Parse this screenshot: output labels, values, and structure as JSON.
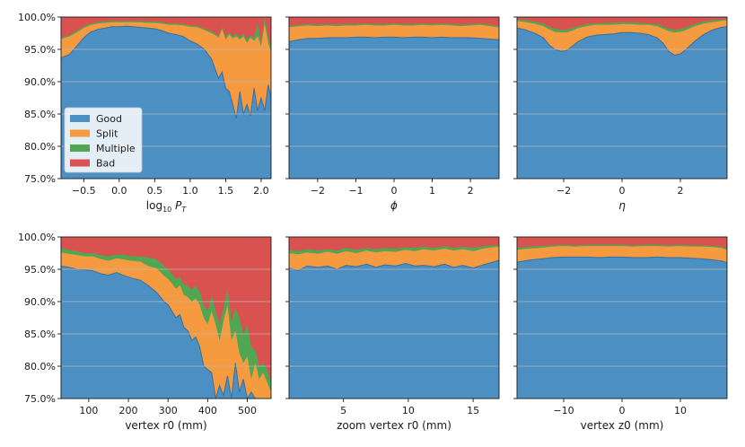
{
  "chart_data": {
    "type": "area",
    "title": "",
    "colors": {
      "good": "#4b8fc3",
      "split": "#f69a3f",
      "multiple": "#51a653",
      "bad": "#d9524f"
    },
    "legend": {
      "placement": "left-middle of first panel",
      "entries": [
        "Good",
        "Split",
        "Multiple",
        "Bad"
      ]
    },
    "ylim": [
      75,
      100
    ],
    "yticks": [
      "75.0%",
      "80.0%",
      "85.0%",
      "90.0%",
      "95.0%",
      "100.0%"
    ],
    "grid": "horizontal",
    "panels": [
      {
        "xlabel_html": "log<tspan font-size='8' dy='3'>10</tspan><tspan dy='-3'> </tspan><tspan font-style='italic'>P</tspan><tspan font-size='8' dy='3' font-style='italic'>T</tspan>",
        "xlabel": "log10 P_T",
        "xlim": [
          -0.82,
          2.14
        ],
        "xticks": [
          -0.5,
          0.0,
          0.5,
          1.0,
          1.5,
          2.0
        ],
        "xtick_labels": [
          "−0.5",
          "0.0",
          "0.5",
          "1.0",
          "1.5",
          "2.0"
        ],
        "show_legend": true,
        "x": [
          -0.82,
          -0.7,
          -0.6,
          -0.5,
          -0.4,
          -0.3,
          -0.2,
          -0.1,
          0.0,
          0.1,
          0.2,
          0.3,
          0.4,
          0.5,
          0.6,
          0.7,
          0.8,
          0.9,
          1.0,
          1.1,
          1.2,
          1.3,
          1.35,
          1.4,
          1.45,
          1.5,
          1.55,
          1.6,
          1.65,
          1.7,
          1.75,
          1.8,
          1.85,
          1.9,
          1.95,
          2.0,
          2.05,
          2.1,
          2.14
        ],
        "good": [
          93.7,
          94.2,
          95.5,
          96.8,
          97.7,
          98.1,
          98.3,
          98.5,
          98.5,
          98.6,
          98.5,
          98.4,
          98.3,
          98.2,
          97.9,
          97.5,
          97.3,
          97.0,
          96.3,
          95.8,
          95.0,
          93.5,
          92.0,
          90.5,
          91.5,
          89.0,
          88.5,
          86.5,
          84.3,
          88.5,
          85.0,
          86.5,
          84.7,
          89.0,
          85.5,
          87.5,
          85.5,
          89.5,
          87.5
        ],
        "multiple": [
          96.8,
          97.2,
          97.9,
          98.5,
          99.0,
          99.2,
          99.3,
          99.4,
          99.4,
          99.4,
          99.4,
          99.4,
          99.3,
          99.3,
          99.2,
          99.0,
          99.0,
          98.9,
          98.7,
          98.6,
          98.2,
          97.8,
          97.5,
          97.0,
          98.5,
          96.8,
          97.7,
          97.0,
          97.5,
          96.8,
          97.5,
          96.5,
          97.2,
          96.8,
          99.0,
          96.0,
          100.0,
          97.0,
          95.0
        ],
        "split": [
          96.6,
          97.0,
          97.6,
          98.3,
          98.8,
          99.0,
          99.1,
          99.2,
          99.2,
          99.2,
          99.2,
          99.2,
          99.1,
          99.1,
          99.0,
          98.8,
          98.8,
          98.7,
          98.5,
          98.4,
          98.0,
          97.5,
          97.2,
          96.8,
          98.2,
          96.5,
          97.3,
          96.7,
          97.0,
          96.5,
          97.0,
          96.0,
          96.8,
          96.3,
          97.0,
          95.5,
          99.0,
          96.0,
          94.5
        ]
      },
      {
        "xlabel_html": "<tspan font-style='italic'>ϕ</tspan>",
        "xlabel": "ϕ",
        "xlim": [
          -2.75,
          2.75
        ],
        "xticks": [
          -2,
          -1,
          0,
          1,
          2
        ],
        "xtick_labels": [
          "−2",
          "−1",
          "0",
          "1",
          "2"
        ],
        "show_legend": false,
        "x": [
          -2.75,
          -2.5,
          -2.25,
          -2.0,
          -1.75,
          -1.5,
          -1.25,
          -1.0,
          -0.75,
          -0.5,
          -0.25,
          0.0,
          0.25,
          0.5,
          0.75,
          1.0,
          1.25,
          1.5,
          1.75,
          2.0,
          2.25,
          2.5,
          2.75
        ],
        "good": [
          96.2,
          96.5,
          96.7,
          96.7,
          96.8,
          96.8,
          96.8,
          96.9,
          96.9,
          96.8,
          96.9,
          96.9,
          96.8,
          96.9,
          96.9,
          96.8,
          96.9,
          96.8,
          96.8,
          96.8,
          96.7,
          96.6,
          96.5
        ],
        "split": [
          98.4,
          98.6,
          98.7,
          98.6,
          98.7,
          98.6,
          98.7,
          98.7,
          98.8,
          98.7,
          98.7,
          98.8,
          98.7,
          98.7,
          98.8,
          98.7,
          98.8,
          98.7,
          98.6,
          98.7,
          98.8,
          98.6,
          98.4
        ],
        "multiple": [
          98.6,
          98.8,
          98.9,
          98.8,
          98.9,
          98.8,
          98.9,
          98.9,
          99.0,
          98.9,
          98.9,
          99.0,
          98.9,
          98.9,
          99.0,
          98.9,
          99.0,
          98.9,
          98.8,
          98.9,
          99.0,
          98.8,
          98.6
        ]
      },
      {
        "xlabel_html": "<tspan font-style='italic'>η</tspan>",
        "xlabel": "η",
        "xlim": [
          -3.6,
          3.6
        ],
        "xticks": [
          -2,
          0,
          2
        ],
        "xtick_labels": [
          "−2",
          "0",
          "2"
        ],
        "show_legend": false,
        "x": [
          -3.6,
          -3.3,
          -3.0,
          -2.7,
          -2.5,
          -2.3,
          -2.1,
          -1.9,
          -1.7,
          -1.5,
          -1.2,
          -0.9,
          -0.6,
          -0.3,
          0.0,
          0.3,
          0.6,
          0.9,
          1.2,
          1.4,
          1.6,
          1.8,
          2.0,
          2.2,
          2.5,
          2.8,
          3.1,
          3.4,
          3.6
        ],
        "good": [
          98.3,
          98.0,
          97.5,
          96.8,
          95.7,
          95.0,
          94.7,
          94.8,
          95.5,
          96.2,
          96.9,
          97.2,
          97.3,
          97.4,
          97.6,
          97.6,
          97.5,
          97.3,
          96.8,
          96.0,
          94.7,
          94.1,
          94.3,
          95.0,
          96.3,
          97.3,
          98.0,
          98.4,
          98.5
        ],
        "split": [
          99.4,
          99.2,
          99.0,
          98.6,
          98.1,
          97.7,
          97.6,
          97.6,
          97.9,
          98.3,
          98.6,
          98.8,
          98.8,
          98.8,
          98.9,
          98.9,
          98.8,
          98.8,
          98.6,
          98.2,
          97.8,
          97.6,
          97.7,
          98.0,
          98.6,
          99.0,
          99.2,
          99.4,
          99.5
        ],
        "multiple": [
          99.6,
          99.5,
          99.3,
          99.0,
          98.5,
          98.2,
          98.0,
          98.0,
          98.3,
          98.6,
          98.9,
          99.0,
          99.1,
          99.1,
          99.2,
          99.2,
          99.1,
          99.0,
          98.9,
          98.6,
          98.2,
          98.0,
          98.1,
          98.4,
          98.9,
          99.3,
          99.5,
          99.6,
          99.7
        ]
      },
      {
        "xlabel_html": "vertex r0 (mm)",
        "xlabel": "vertex r0 (mm)",
        "xlim": [
          30,
          560
        ],
        "xticks": [
          100,
          200,
          300,
          400,
          500
        ],
        "xtick_labels": [
          "100",
          "200",
          "300",
          "400",
          "500"
        ],
        "show_legend": false,
        "x": [
          30,
          50,
          70,
          90,
          110,
          130,
          150,
          170,
          190,
          210,
          230,
          250,
          270,
          290,
          300,
          310,
          320,
          330,
          340,
          350,
          360,
          370,
          380,
          390,
          400,
          410,
          420,
          430,
          440,
          450,
          460,
          470,
          480,
          490,
          500,
          510,
          520,
          530,
          540,
          550,
          560
        ],
        "good": [
          95.5,
          95.3,
          95.0,
          94.9,
          94.8,
          94.3,
          94.1,
          94.5,
          94.0,
          93.6,
          93.3,
          92.5,
          91.5,
          90.0,
          89.5,
          88.5,
          87.5,
          88.0,
          86.0,
          85.5,
          84.0,
          84.5,
          83.0,
          80.0,
          79.5,
          79.0,
          75.0,
          77.0,
          75.5,
          78.5,
          75.0,
          80.5,
          76.0,
          78.0,
          75.0,
          76.0,
          75.0,
          75.0,
          75.0,
          75.0,
          75.0
        ],
        "split": [
          97.6,
          97.4,
          97.2,
          97.0,
          97.0,
          96.6,
          96.3,
          96.7,
          96.5,
          96.3,
          96.2,
          95.5,
          95.2,
          94.0,
          93.5,
          92.8,
          92.0,
          92.5,
          91.0,
          90.7,
          90.0,
          90.5,
          89.5,
          87.5,
          86.5,
          88.5,
          86.5,
          84.0,
          87.0,
          89.5,
          84.0,
          85.5,
          82.0,
          80.5,
          81.5,
          78.0,
          80.5,
          78.0,
          79.0,
          77.5,
          76.0
        ],
        "multiple": [
          98.3,
          98.0,
          97.8,
          97.5,
          97.5,
          97.2,
          97.0,
          97.3,
          97.2,
          97.0,
          97.0,
          96.8,
          96.6,
          95.5,
          95.0,
          94.3,
          93.5,
          93.8,
          92.6,
          92.5,
          91.8,
          92.5,
          91.5,
          89.5,
          88.5,
          91.0,
          88.5,
          86.5,
          89.0,
          92.0,
          87.0,
          89.0,
          87.5,
          85.0,
          86.5,
          83.0,
          82.5,
          80.0,
          80.5,
          79.5,
          77.5
        ]
      },
      {
        "xlabel_html": "zoom vertex r0 (mm)",
        "xlabel": "zoom vertex r0 (mm)",
        "xlim": [
          0.8,
          17
        ],
        "xticks": [
          5,
          10,
          15
        ],
        "xtick_labels": [
          "5",
          "10",
          "15"
        ],
        "show_legend": false,
        "x": [
          0.8,
          1.5,
          2.2,
          3.0,
          3.8,
          4.5,
          5.2,
          6.0,
          6.8,
          7.5,
          8.2,
          9.0,
          9.8,
          10.5,
          11.2,
          12.0,
          12.8,
          13.5,
          14.2,
          15.0,
          15.8,
          16.5,
          17.0
        ],
        "good": [
          95.2,
          94.8,
          95.5,
          95.3,
          95.5,
          95.0,
          95.6,
          95.4,
          95.8,
          95.3,
          95.7,
          95.5,
          95.9,
          95.5,
          95.6,
          95.4,
          95.8,
          95.3,
          95.6,
          95.2,
          95.7,
          96.1,
          96.4
        ],
        "split": [
          97.5,
          97.3,
          97.6,
          97.4,
          97.7,
          97.4,
          97.8,
          97.5,
          97.9,
          97.6,
          97.8,
          97.7,
          98.0,
          97.8,
          98.1,
          97.9,
          98.2,
          97.9,
          98.1,
          97.8,
          98.2,
          98.4,
          98.5
        ],
        "multiple": [
          98.0,
          97.8,
          98.1,
          97.9,
          98.1,
          97.9,
          98.3,
          98.0,
          98.3,
          98.1,
          98.3,
          98.2,
          98.4,
          98.3,
          98.5,
          98.3,
          98.6,
          98.3,
          98.5,
          98.3,
          98.6,
          98.7,
          98.8
        ]
      },
      {
        "xlabel_html": "vertex z0 (mm)",
        "xlabel": "vertex z0 (mm)",
        "xlim": [
          -18,
          18
        ],
        "xticks": [
          -10,
          0,
          10
        ],
        "xtick_labels": [
          "−10",
          "0",
          "10"
        ],
        "show_legend": false,
        "x": [
          -18,
          -16,
          -14,
          -12,
          -10,
          -8,
          -6,
          -4,
          -2,
          0,
          2,
          4,
          6,
          8,
          10,
          12,
          14,
          16,
          17,
          18
        ],
        "good": [
          96.1,
          96.4,
          96.6,
          96.8,
          96.9,
          96.9,
          96.9,
          96.8,
          96.9,
          96.9,
          96.8,
          96.8,
          96.9,
          96.8,
          96.8,
          96.7,
          96.6,
          96.4,
          96.3,
          96.0
        ],
        "split": [
          98.0,
          98.2,
          98.3,
          98.5,
          98.6,
          98.5,
          98.6,
          98.6,
          98.6,
          98.6,
          98.5,
          98.6,
          98.6,
          98.5,
          98.6,
          98.5,
          98.5,
          98.4,
          98.3,
          98.0
        ],
        "multiple": [
          98.3,
          98.5,
          98.6,
          98.7,
          98.8,
          98.7,
          98.8,
          98.8,
          98.8,
          98.8,
          98.7,
          98.8,
          98.8,
          98.7,
          98.8,
          98.7,
          98.7,
          98.6,
          98.5,
          98.2
        ]
      }
    ]
  }
}
